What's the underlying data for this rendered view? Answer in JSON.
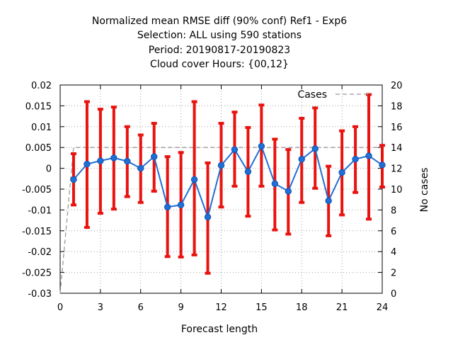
{
  "chart_data": {
    "type": "line",
    "title_lines": [
      "Normalized mean RMSE diff (90% conf) Ref1 - Exp6",
      "Selection: ALL using   590 stations",
      "Period: 20190817-20190823",
      "Cloud cover   Hours: {00,12}"
    ],
    "xlabel": "Forecast length",
    "ylabel": "",
    "y2label": "No cases",
    "xlim": [
      0,
      24
    ],
    "ylim": [
      -0.03,
      0.02
    ],
    "y2lim": [
      0,
      20
    ],
    "x_ticks": [
      0,
      3,
      6,
      9,
      12,
      15,
      18,
      21,
      24
    ],
    "x_tick_labels": [
      "0",
      "3",
      "6",
      "9",
      "12",
      "15",
      "18",
      "21",
      "24"
    ],
    "y_ticks": [
      -0.03,
      -0.025,
      -0.02,
      -0.015,
      -0.01,
      -0.005,
      0,
      0.005,
      0.01,
      0.015,
      0.02
    ],
    "y_tick_labels": [
      "-0.03",
      "-0.025",
      "-0.02",
      "-0.015",
      "-0.01",
      "-0.005",
      "0",
      "0.005",
      "0.01",
      "0.015",
      "0.02"
    ],
    "y2_ticks": [
      0,
      2,
      4,
      6,
      8,
      10,
      12,
      14,
      16,
      18,
      20
    ],
    "y2_tick_labels": [
      "0",
      "2",
      "4",
      "6",
      "8",
      "10",
      "12",
      "14",
      "16",
      "18",
      "20"
    ],
    "grid": true,
    "legend": [
      {
        "name": "Cases",
        "placement": "top-right"
      }
    ],
    "series": [
      {
        "x": [
          1,
          2,
          3,
          4,
          5,
          6,
          7,
          8,
          9,
          10,
          11,
          12,
          13,
          14,
          15,
          16,
          17,
          18,
          19,
          20,
          21,
          22,
          23,
          24
        ],
        "values": [
          -0.0027,
          0.001,
          0.0018,
          0.0025,
          0.0017,
          0.0,
          0.0028,
          -0.0093,
          -0.0088,
          -0.0027,
          -0.0117,
          0.0007,
          0.0045,
          -0.0008,
          0.0053,
          -0.0037,
          -0.0055,
          0.0022,
          0.0047,
          -0.0078,
          -0.001,
          0.0022,
          0.003,
          0.0008
        ],
        "ci_low": [
          -0.0088,
          -0.0142,
          -0.0108,
          -0.0098,
          -0.0068,
          -0.0082,
          -0.0055,
          -0.0212,
          -0.0213,
          -0.0208,
          -0.0252,
          -0.0093,
          -0.0043,
          -0.0115,
          -0.0043,
          -0.0148,
          -0.0158,
          -0.0082,
          -0.0048,
          -0.0162,
          -0.0112,
          -0.0058,
          -0.0122,
          -0.0045
        ],
        "ci_high": [
          0.0035,
          0.016,
          0.0142,
          0.0147,
          0.01,
          0.008,
          0.0108,
          0.0028,
          0.0038,
          0.016,
          0.0013,
          0.0108,
          0.0135,
          0.0098,
          0.0152,
          0.007,
          0.0045,
          0.012,
          0.0145,
          0.0005,
          0.009,
          0.01,
          0.0177,
          0.0055
        ],
        "color": "#1f6fd6",
        "errorbar_color": "#e8130f"
      },
      {
        "name": "Cases",
        "axis": "y2",
        "x": [
          0,
          1,
          2,
          3,
          4,
          5,
          6,
          7,
          8,
          9,
          10,
          11,
          12,
          13,
          14,
          15,
          16,
          17,
          18,
          19,
          20,
          21,
          22,
          23,
          24
        ],
        "values": [
          0,
          14,
          14,
          14,
          14,
          14,
          14,
          14,
          14,
          14,
          14,
          14,
          14,
          14,
          14,
          14,
          14,
          14,
          14,
          14,
          14,
          14,
          14,
          14,
          14
        ],
        "color": "#999999",
        "dashed": true
      }
    ]
  }
}
